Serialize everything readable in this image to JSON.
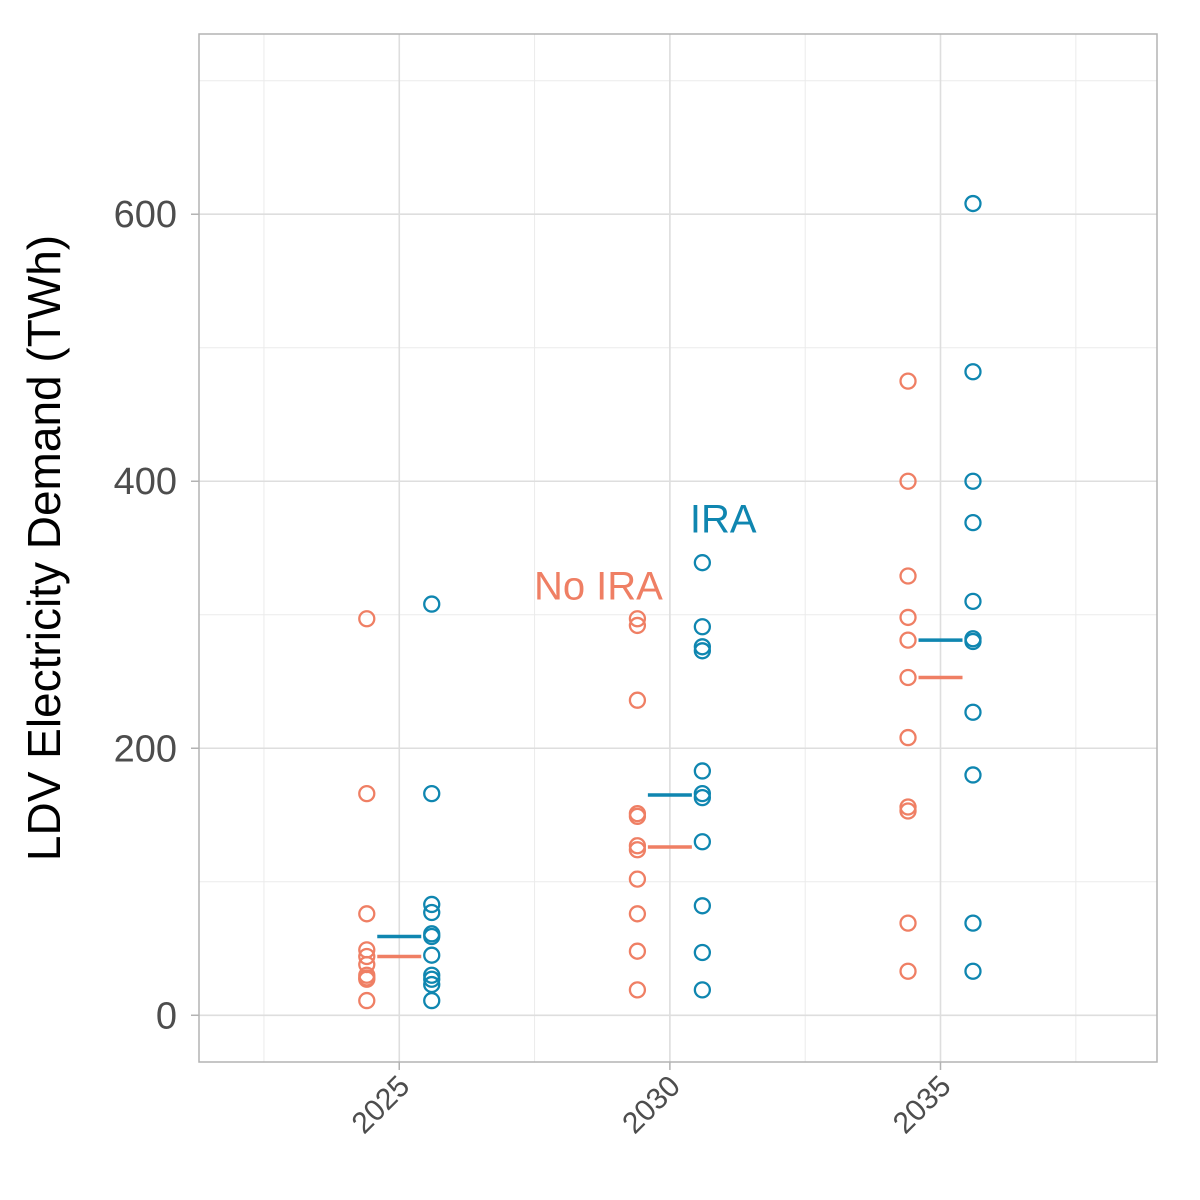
{
  "chart_data": {
    "type": "scatter",
    "title": "",
    "xlabel": "",
    "ylabel": "LDV Electricity Demand (TWh)",
    "xlim": [
      2021.3,
      2039.0
    ],
    "ylim": [
      -35,
      735
    ],
    "x_ticks": [
      2025,
      2030,
      2035
    ],
    "x_tick_labels": [
      "2025",
      "2030",
      "2035"
    ],
    "y_ticks": [
      0,
      200,
      400,
      600
    ],
    "y_tick_labels": [
      "0",
      "200",
      "400",
      "600"
    ],
    "grid": true,
    "legend": "none",
    "series": [
      {
        "name": "No IRA",
        "color": "#EF7F64",
        "x_offset_years": -0.6,
        "points": [
          {
            "x": 2025,
            "ys": [
              297,
              166,
              76,
              49,
              44,
              38,
              30,
              28,
              27,
              11
            ]
          },
          {
            "x": 2030,
            "ys": [
              297,
              292,
              236,
              151,
              149,
              127,
              124,
              102,
              76,
              48,
              19
            ]
          },
          {
            "x": 2035,
            "ys": [
              475,
              400,
              329,
              298,
              281,
              253,
              208,
              156,
              153,
              69,
              33
            ]
          }
        ],
        "means": [
          {
            "x": 2025,
            "y": 44
          },
          {
            "x": 2030,
            "y": 126
          },
          {
            "x": 2035,
            "y": 253
          }
        ]
      },
      {
        "name": "IRA",
        "color": "#0F86B0",
        "x_offset_years": 0.6,
        "points": [
          {
            "x": 2025,
            "ys": [
              308,
              166,
              83,
              77,
              61,
              59,
              45,
              30,
              27,
              23,
              11
            ]
          },
          {
            "x": 2030,
            "ys": [
              339,
              291,
              276,
              273,
              183,
              166,
              163,
              130,
              82,
              47,
              19
            ]
          },
          {
            "x": 2035,
            "ys": [
              608,
              482,
              400,
              369,
              310,
              282,
              280,
              227,
              180,
              69,
              33
            ]
          }
        ],
        "means": [
          {
            "x": 2025,
            "y": 59
          },
          {
            "x": 2030,
            "y": 165
          },
          {
            "x": 2035,
            "y": 281
          }
        ]
      }
    ],
    "annotations": [
      {
        "text": "No IRA",
        "series": 0,
        "x": 2030,
        "y": 322
      },
      {
        "text": "IRA",
        "series": 1,
        "x": 2030,
        "y": 372
      }
    ]
  }
}
